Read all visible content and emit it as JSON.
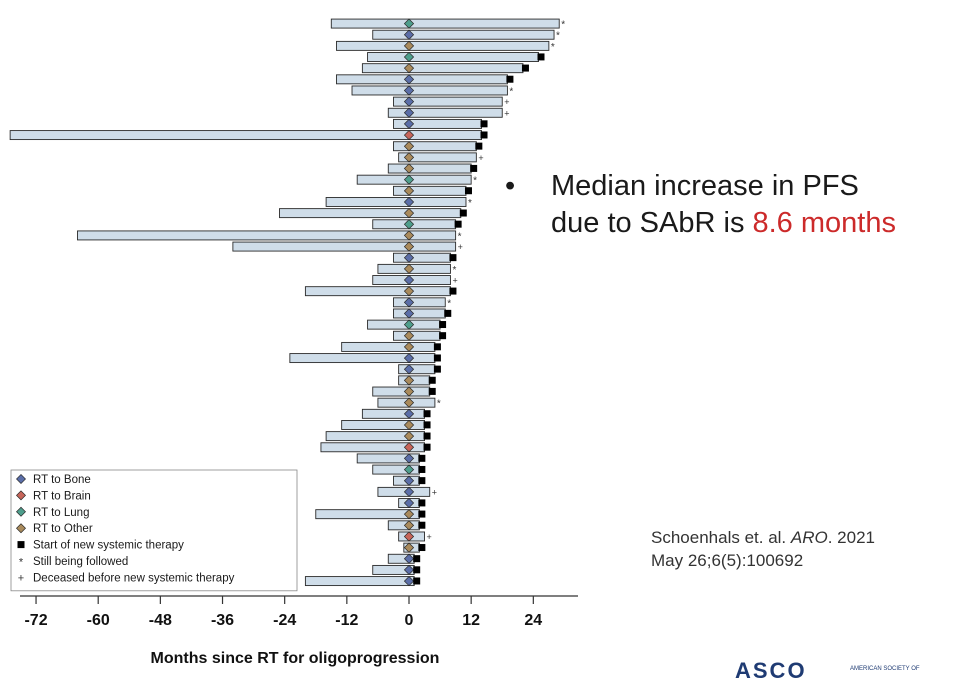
{
  "chart_data": {
    "type": "bar",
    "orientation": "horizontal-swimmer",
    "xlabel": "Months since RT for oligoprogression",
    "xticks": [
      -72,
      -60,
      -48,
      -36,
      -24,
      -12,
      0,
      12,
      24
    ],
    "xlim": [
      -77,
      32
    ],
    "colors": {
      "bar_fill": "#cfdde9",
      "bar_stroke": "#2a2a2a",
      "bone": "#5b6ea8",
      "brain": "#c7655a",
      "lung": "#4e9e8c",
      "other": "#a98a5c"
    },
    "legend": {
      "placement": "bottom-left",
      "entries": [
        {
          "label": "RT to Bone",
          "marker": "diamond",
          "color": "#5b6ea8"
        },
        {
          "label": "RT to Brain",
          "marker": "diamond",
          "color": "#c7655a"
        },
        {
          "label": "RT to Lung",
          "marker": "diamond",
          "color": "#4e9e8c"
        },
        {
          "label": "RT to Other",
          "marker": "diamond",
          "color": "#a98a5c"
        },
        {
          "label": "Start of new systemic therapy",
          "marker": "square",
          "color": "#000000"
        },
        {
          "label": "Still being followed",
          "marker": "star",
          "color": "#333333"
        },
        {
          "label": "Deceased before new systemic therapy",
          "marker": "plus",
          "color": "#333333"
        }
      ]
    },
    "patients": [
      {
        "start": -15,
        "end": 29,
        "site": "lung",
        "event": "followed"
      },
      {
        "start": -7,
        "end": 28,
        "site": "bone",
        "event": "followed"
      },
      {
        "start": -14,
        "end": 27,
        "site": "other",
        "event": "followed"
      },
      {
        "start": -8,
        "end": 25,
        "site": "lung",
        "event": "therapy"
      },
      {
        "start": -9,
        "end": 22,
        "site": "other",
        "event": "therapy"
      },
      {
        "start": -14,
        "end": 19,
        "site": "bone",
        "event": "therapy"
      },
      {
        "start": -11,
        "end": 19,
        "site": "bone",
        "event": "followed"
      },
      {
        "start": -3,
        "end": 18,
        "site": "bone",
        "event": "deceased"
      },
      {
        "start": -4,
        "end": 18,
        "site": "bone",
        "event": "deceased"
      },
      {
        "start": -3,
        "end": 14,
        "site": "bone",
        "event": "therapy"
      },
      {
        "start": -77,
        "end": 14,
        "site": "brain",
        "event": "therapy"
      },
      {
        "start": -3,
        "end": 13,
        "site": "other",
        "event": "therapy"
      },
      {
        "start": -2,
        "end": 13,
        "site": "other",
        "event": "deceased"
      },
      {
        "start": -4,
        "end": 12,
        "site": "other",
        "event": "therapy"
      },
      {
        "start": -10,
        "end": 12,
        "site": "lung",
        "event": "followed"
      },
      {
        "start": -3,
        "end": 11,
        "site": "other",
        "event": "therapy"
      },
      {
        "start": -16,
        "end": 11,
        "site": "bone",
        "event": "followed"
      },
      {
        "start": -25,
        "end": 10,
        "site": "other",
        "event": "therapy"
      },
      {
        "start": -7,
        "end": 9,
        "site": "lung",
        "event": "therapy"
      },
      {
        "start": -64,
        "end": 9,
        "site": "other",
        "event": "followed"
      },
      {
        "start": -34,
        "end": 9,
        "site": "other",
        "event": "deceased"
      },
      {
        "start": -3,
        "end": 8,
        "site": "bone",
        "event": "therapy"
      },
      {
        "start": -6,
        "end": 8,
        "site": "other",
        "event": "followed"
      },
      {
        "start": -7,
        "end": 8,
        "site": "bone",
        "event": "deceased"
      },
      {
        "start": -20,
        "end": 8,
        "site": "other",
        "event": "therapy"
      },
      {
        "start": -3,
        "end": 7,
        "site": "bone",
        "event": "followed"
      },
      {
        "start": -3,
        "end": 7,
        "site": "bone",
        "event": "therapy"
      },
      {
        "start": -8,
        "end": 6,
        "site": "lung",
        "event": "therapy"
      },
      {
        "start": -3,
        "end": 6,
        "site": "other",
        "event": "therapy"
      },
      {
        "start": -13,
        "end": 5,
        "site": "other",
        "event": "therapy"
      },
      {
        "start": -23,
        "end": 5,
        "site": "bone",
        "event": "therapy"
      },
      {
        "start": -2,
        "end": 5,
        "site": "bone",
        "event": "therapy"
      },
      {
        "start": -2,
        "end": 4,
        "site": "other",
        "event": "therapy"
      },
      {
        "start": -7,
        "end": 4,
        "site": "other",
        "event": "therapy"
      },
      {
        "start": -6,
        "end": 5,
        "site": "other",
        "event": "followed"
      },
      {
        "start": -9,
        "end": 3,
        "site": "bone",
        "event": "therapy"
      },
      {
        "start": -13,
        "end": 3,
        "site": "other",
        "event": "therapy"
      },
      {
        "start": -16,
        "end": 3,
        "site": "other",
        "event": "therapy"
      },
      {
        "start": -17,
        "end": 3,
        "site": "brain",
        "event": "therapy"
      },
      {
        "start": -10,
        "end": 2,
        "site": "bone",
        "event": "therapy"
      },
      {
        "start": -7,
        "end": 2,
        "site": "lung",
        "event": "therapy"
      },
      {
        "start": -3,
        "end": 2,
        "site": "bone",
        "event": "therapy"
      },
      {
        "start": -6,
        "end": 4,
        "site": "bone",
        "event": "deceased"
      },
      {
        "start": -2,
        "end": 2,
        "site": "bone",
        "event": "therapy"
      },
      {
        "start": -18,
        "end": 2,
        "site": "other",
        "event": "therapy"
      },
      {
        "start": -4,
        "end": 2,
        "site": "other",
        "event": "therapy"
      },
      {
        "start": -2,
        "end": 3,
        "site": "brain",
        "event": "deceased"
      },
      {
        "start": -1,
        "end": 2,
        "site": "other",
        "event": "therapy"
      },
      {
        "start": -4,
        "end": 1,
        "site": "bone",
        "event": "therapy"
      },
      {
        "start": -7,
        "end": 1,
        "site": "bone",
        "event": "therapy"
      },
      {
        "start": -20,
        "end": 1,
        "site": "bone",
        "event": "therapy"
      }
    ]
  },
  "bullet": {
    "symbol": "•",
    "line1": "Median increase in PFS",
    "line2_prefix": "due to SAbR is ",
    "line2_highlight": "8.6 months",
    "highlight_color": "#cc2a2a"
  },
  "citation": {
    "authors": "Schoenhals et. al. ",
    "journal": "ARO",
    "year": ". 2021",
    "details": "May 26;6(5):100692"
  },
  "footer": {
    "logo": "ASCO",
    "logo_sub": "AMERICAN SOCIETY OF"
  }
}
